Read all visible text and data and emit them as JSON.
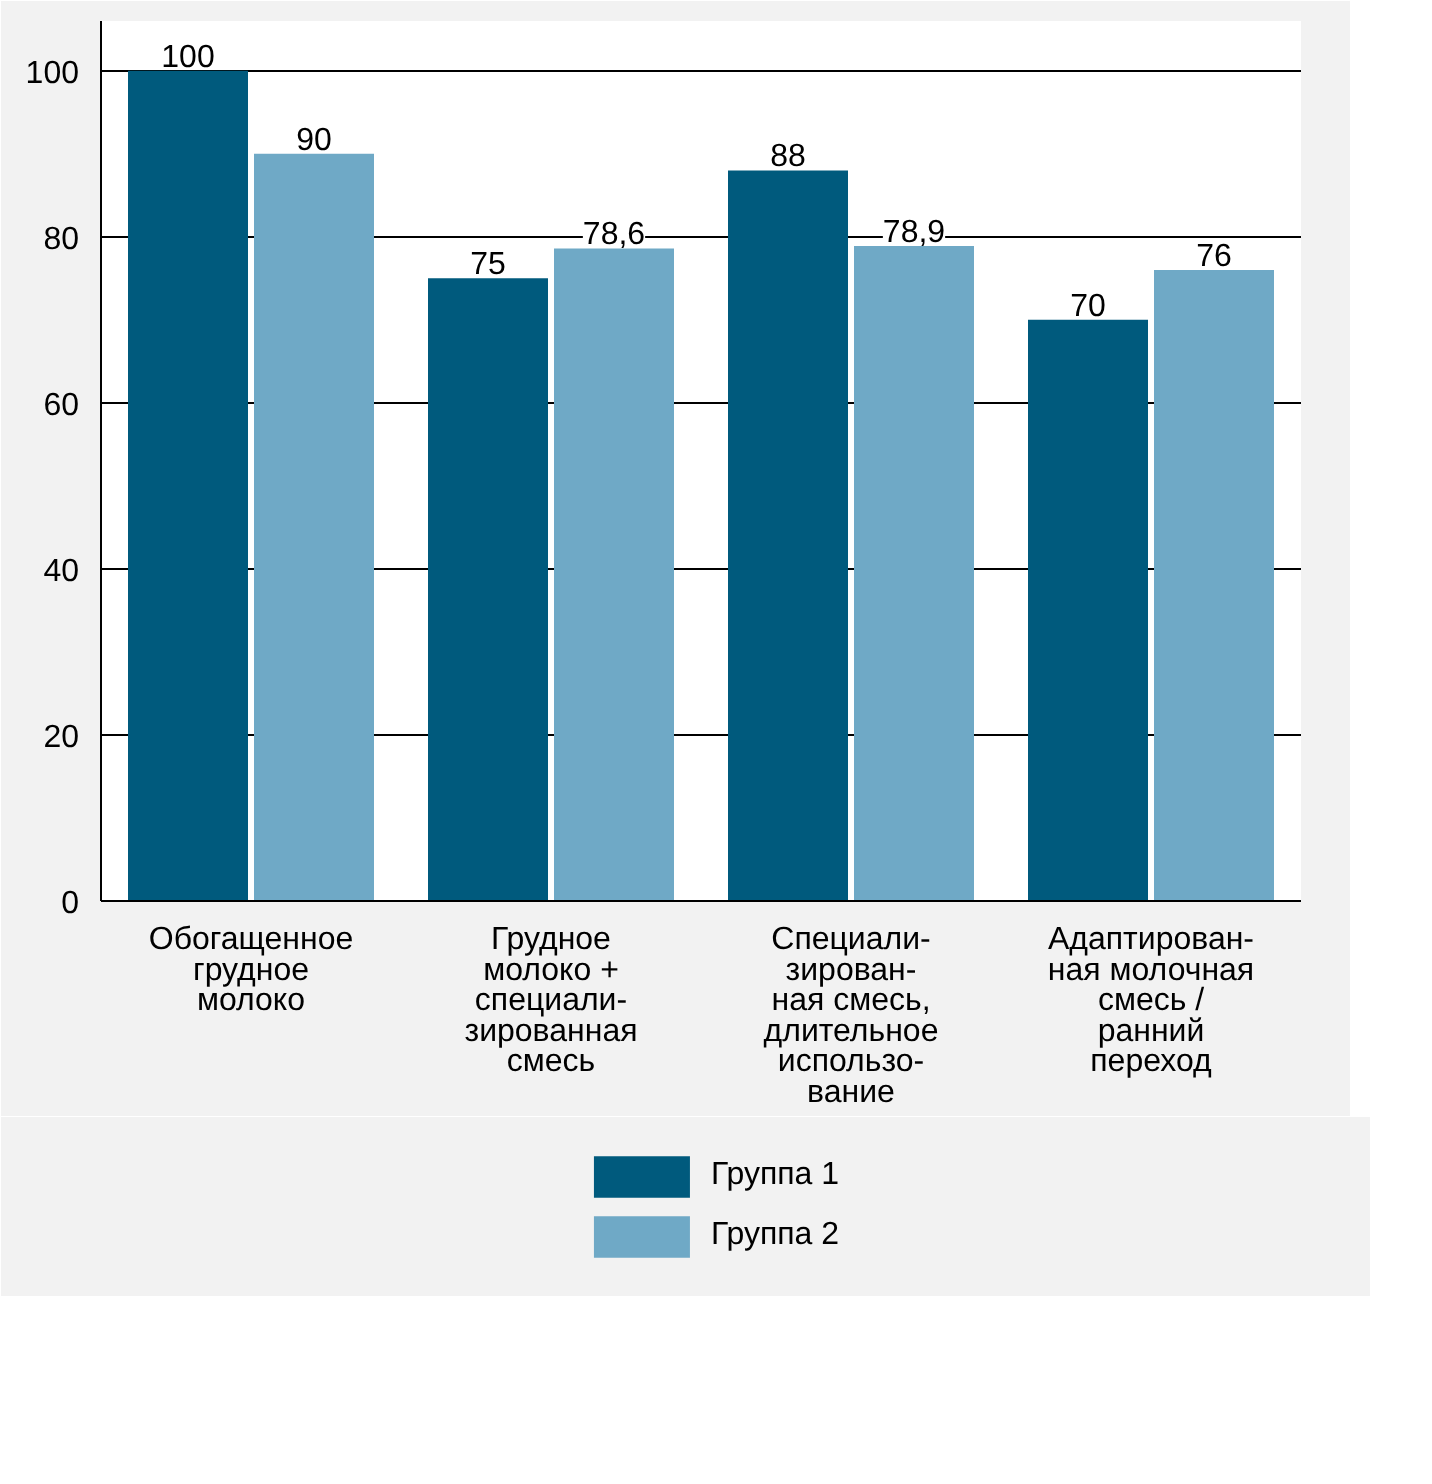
{
  "chart_data": {
    "type": "bar",
    "categories": [
      "Обогащенное\nгрудное\nмолоко",
      "Грудное\nмолоко +\nспециали-\nзированная\nсмесь",
      "Специали-\nзирован-\nная смесь,\nдлительное\nиспользо-\nвание",
      "Адаптирован-\nная молочная\nсмесь /\nранний\nпереход"
    ],
    "series": [
      {
        "name": "Группа 1",
        "color": "#005a7d",
        "values": [
          100,
          75,
          88,
          70
        ],
        "value_labels": [
          "100",
          "75",
          "88",
          "70"
        ]
      },
      {
        "name": "Группа 2",
        "color": "#6fa9c6",
        "values": [
          90,
          78.6,
          78.9,
          76
        ],
        "value_labels": [
          "90",
          "78,6",
          "78,9",
          "76"
        ]
      }
    ],
    "ylim": [
      0,
      106
    ],
    "yticks": [
      0,
      20,
      40,
      60,
      80,
      100
    ],
    "grid": "y",
    "legend": "bottom"
  }
}
